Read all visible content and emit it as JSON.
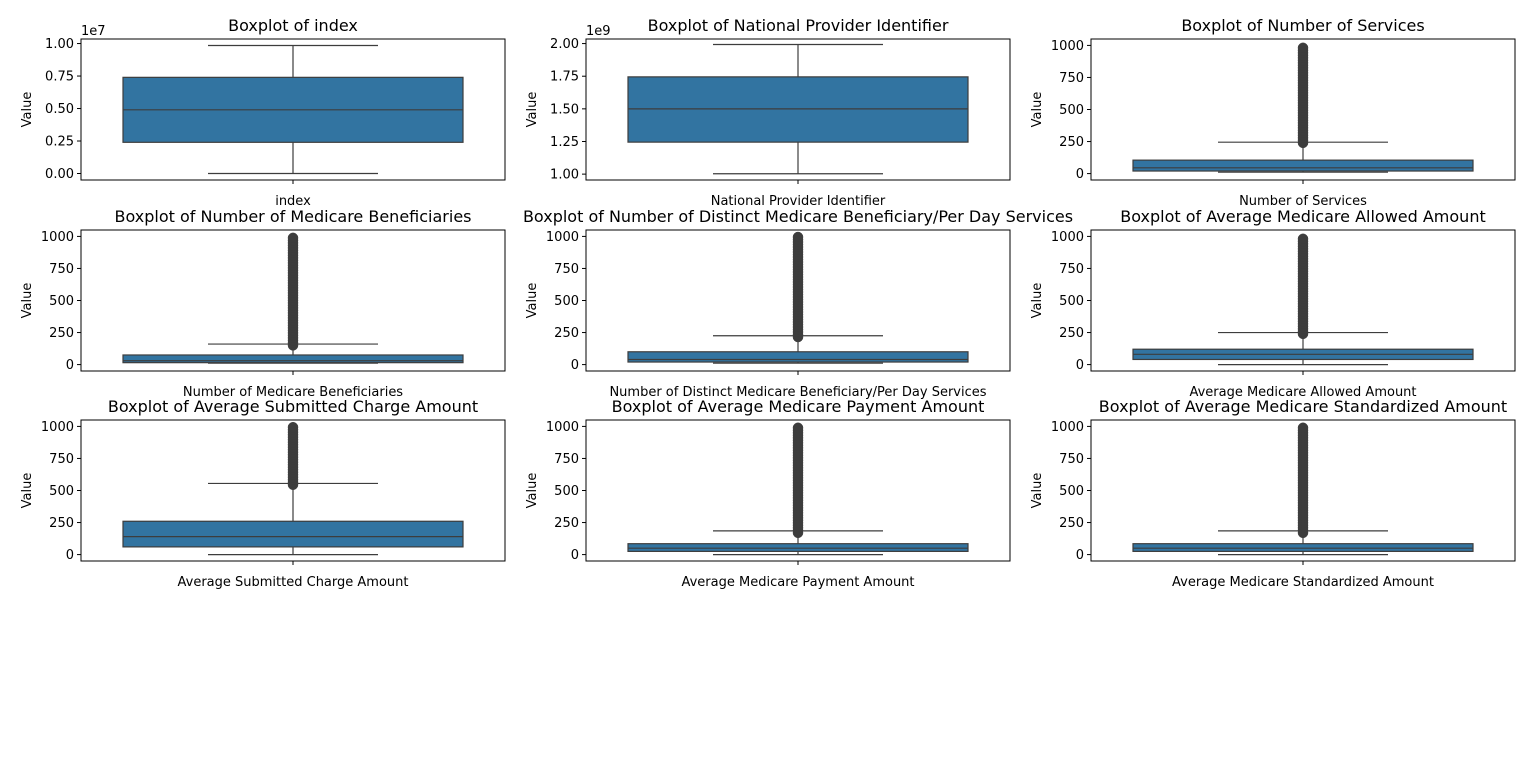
{
  "colors": {
    "box": "#3274a1",
    "line": "#3d3d3d",
    "frame": "#000000",
    "bg": "#ffffff"
  },
  "chart_data": [
    {
      "type": "boxplot",
      "title": "Boxplot of index",
      "xlabel": "index",
      "ylabel": "Value",
      "offset_text": "1e7",
      "ylim": [
        -0.05,
        1.035
      ],
      "yticks": [
        0.0,
        0.25,
        0.5,
        0.75,
        1.0
      ],
      "ytick_labels": [
        "0.00",
        "0.25",
        "0.50",
        "0.75",
        "1.00"
      ],
      "box": {
        "whisker_low": 0.0,
        "q1": 0.24,
        "median": 0.49,
        "q3": 0.74,
        "whisker_high": 0.985
      },
      "outliers": null
    },
    {
      "type": "boxplot",
      "title": "Boxplot of National Provider Identifier",
      "xlabel": "National Provider Identifier",
      "ylabel": "Value",
      "offset_text": "1e9",
      "ylim": [
        0.955,
        2.035
      ],
      "yticks": [
        1.0,
        1.25,
        1.5,
        1.75,
        2.0
      ],
      "ytick_labels": [
        "1.00",
        "1.25",
        "1.50",
        "1.75",
        "2.00"
      ],
      "box": {
        "whisker_low": 1.003,
        "q1": 1.245,
        "median": 1.5,
        "q3": 1.745,
        "whisker_high": 1.993
      },
      "outliers": null
    },
    {
      "type": "boxplot",
      "title": "Boxplot of Number of Services",
      "xlabel": "Number of Services",
      "ylabel": "Value",
      "offset_text": "",
      "ylim": [
        -50,
        1050
      ],
      "yticks": [
        0,
        250,
        500,
        750,
        1000
      ],
      "ytick_labels": [
        "0",
        "250",
        "500",
        "750",
        "1000"
      ],
      "box": {
        "whisker_low": 11,
        "q1": 20,
        "median": 45,
        "q3": 105,
        "whisker_high": 245
      },
      "outliers": {
        "from": 240,
        "to": 1000
      }
    },
    {
      "type": "boxplot",
      "title": "Boxplot of Number of Medicare Beneficiaries",
      "xlabel": "Number of Medicare Beneficiaries",
      "ylabel": "Value",
      "offset_text": "",
      "ylim": [
        -50,
        1050
      ],
      "yticks": [
        0,
        250,
        500,
        750,
        1000
      ],
      "ytick_labels": [
        "0",
        "250",
        "500",
        "750",
        "1000"
      ],
      "box": {
        "whisker_low": 11,
        "q1": 15,
        "median": 30,
        "q3": 75,
        "whisker_high": 160
      },
      "outliers": {
        "from": 150,
        "to": 1000
      }
    },
    {
      "type": "boxplot",
      "title": "Boxplot of Number of Distinct Medicare Beneficiary/Per Day Services",
      "xlabel": "Number of Distinct Medicare Beneficiary/Per Day Services",
      "ylabel": "Value",
      "offset_text": "",
      "ylim": [
        -50,
        1050
      ],
      "yticks": [
        0,
        250,
        500,
        750,
        1000
      ],
      "ytick_labels": [
        "0",
        "250",
        "500",
        "750",
        "1000"
      ],
      "box": {
        "whisker_low": 11,
        "q1": 20,
        "median": 40,
        "q3": 100,
        "whisker_high": 225
      },
      "outliers": {
        "from": 215,
        "to": 1000
      }
    },
    {
      "type": "boxplot",
      "title": "Boxplot of Average Medicare Allowed Amount",
      "xlabel": "Average Medicare Allowed Amount",
      "ylabel": "Value",
      "offset_text": "",
      "ylim": [
        -50,
        1050
      ],
      "yticks": [
        0,
        250,
        500,
        750,
        1000
      ],
      "ytick_labels": [
        "0",
        "250",
        "500",
        "750",
        "1000"
      ],
      "box": {
        "whisker_low": 0,
        "q1": 40,
        "median": 80,
        "q3": 120,
        "whisker_high": 250
      },
      "outliers": {
        "from": 240,
        "to": 1000
      }
    },
    {
      "type": "boxplot",
      "title": "Boxplot of Average Submitted Charge Amount",
      "xlabel": "Average Submitted Charge Amount",
      "ylabel": "Value",
      "offset_text": "",
      "ylim": [
        -50,
        1050
      ],
      "yticks": [
        0,
        250,
        500,
        750,
        1000
      ],
      "ytick_labels": [
        "0",
        "250",
        "500",
        "750",
        "1000"
      ],
      "box": {
        "whisker_low": 0,
        "q1": 60,
        "median": 140,
        "q3": 260,
        "whisker_high": 555
      },
      "outliers": {
        "from": 545,
        "to": 1000
      }
    },
    {
      "type": "boxplot",
      "title": "Boxplot of Average Medicare Payment Amount",
      "xlabel": "Average Medicare Payment Amount",
      "ylabel": "Value",
      "offset_text": "",
      "ylim": [
        -50,
        1050
      ],
      "yticks": [
        0,
        250,
        500,
        750,
        1000
      ],
      "ytick_labels": [
        "0",
        "250",
        "500",
        "750",
        "1000"
      ],
      "box": {
        "whisker_low": 0,
        "q1": 25,
        "median": 50,
        "q3": 85,
        "whisker_high": 185
      },
      "outliers": {
        "from": 170,
        "to": 1000
      }
    },
    {
      "type": "boxplot",
      "title": "Boxplot of Average Medicare Standardized Amount",
      "xlabel": "Average Medicare Standardized Amount",
      "ylabel": "Value",
      "offset_text": "",
      "ylim": [
        -50,
        1050
      ],
      "yticks": [
        0,
        250,
        500,
        750,
        1000
      ],
      "ytick_labels": [
        "0",
        "250",
        "500",
        "750",
        "1000"
      ],
      "box": {
        "whisker_low": 0,
        "q1": 25,
        "median": 50,
        "q3": 85,
        "whisker_high": 185
      },
      "outliers": {
        "from": 170,
        "to": 1000
      }
    }
  ]
}
